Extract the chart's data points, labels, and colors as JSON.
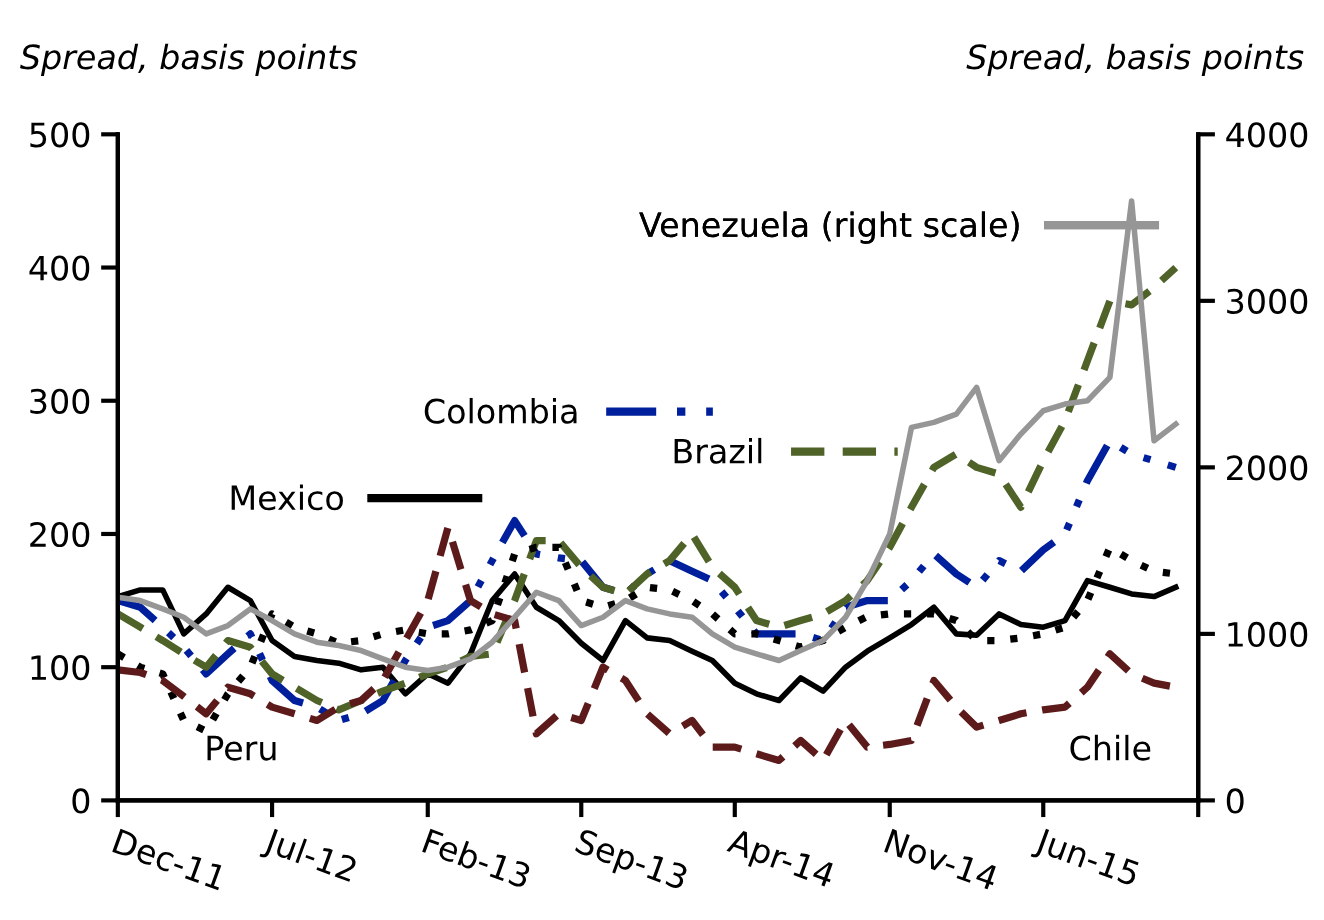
{
  "chart_data": {
    "type": "line",
    "ylabel": "Spread, basis points",
    "y2label": "Spread, basis points",
    "x": [
      "2011-12",
      "2012-01",
      "2012-02",
      "2012-03",
      "2012-04",
      "2012-05",
      "2012-06",
      "2012-07",
      "2012-08",
      "2012-09",
      "2012-10",
      "2012-11",
      "2012-12",
      "2013-01",
      "2013-02",
      "2013-03",
      "2013-04",
      "2013-05",
      "2013-06",
      "2013-07",
      "2013-08",
      "2013-09",
      "2013-10",
      "2013-11",
      "2013-12",
      "2014-01",
      "2014-02",
      "2014-03",
      "2014-04",
      "2014-05",
      "2014-06",
      "2014-07",
      "2014-08",
      "2014-09",
      "2014-10",
      "2014-11",
      "2014-12",
      "2015-01",
      "2015-02",
      "2015-03",
      "2015-04",
      "2015-05",
      "2015-06",
      "2015-07",
      "2015-08",
      "2015-09",
      "2015-10",
      "2015-11",
      "2015-12"
    ],
    "series": [
      {
        "name": "Mexico",
        "color": "#000000",
        "line_style": "solid",
        "values": [
          153,
          158,
          158,
          125,
          140,
          160,
          150,
          120,
          108,
          105,
          103,
          98,
          100,
          80,
          95,
          88,
          110,
          150,
          170,
          145,
          135,
          118,
          105,
          135,
          122,
          120,
          112,
          105,
          88,
          80,
          75,
          92,
          82,
          100,
          112,
          122,
          132,
          145,
          125,
          124,
          140,
          132,
          130,
          135,
          165,
          160,
          155,
          153,
          160
        ]
      },
      {
        "name": "Colombia",
        "color": "#001f9c",
        "line_style": "dashdot",
        "values": [
          150,
          145,
          130,
          115,
          95,
          110,
          125,
          90,
          75,
          70,
          60,
          65,
          75,
          105,
          130,
          135,
          150,
          180,
          210,
          185,
          182,
          180,
          160,
          155,
          170,
          180,
          172,
          165,
          145,
          125,
          125,
          125,
          120,
          145,
          150,
          150,
          165,
          185,
          170,
          160,
          180,
          172,
          188,
          200,
          240,
          270,
          260,
          255,
          250
        ]
      },
      {
        "name": "Brazil",
        "color": "#4f6228",
        "line_style": "dashed",
        "values": [
          140,
          130,
          120,
          110,
          100,
          120,
          115,
          95,
          85,
          75,
          68,
          75,
          82,
          88,
          95,
          100,
          108,
          110,
          150,
          195,
          195,
          175,
          160,
          155,
          170,
          180,
          200,
          175,
          160,
          135,
          130,
          135,
          140,
          150,
          165,
          190,
          220,
          250,
          260,
          250,
          245,
          220,
          255,
          285,
          330,
          375,
          372,
          385,
          400
        ]
      },
      {
        "name": "Venezuela (right scale)",
        "color": "#969696",
        "line_style": "solid",
        "axis": "y2",
        "values": [
          1220,
          1200,
          1150,
          1100,
          1000,
          1050,
          1150,
          1080,
          1000,
          950,
          930,
          900,
          850,
          800,
          780,
          800,
          850,
          950,
          1100,
          1250,
          1200,
          1050,
          1100,
          1200,
          1150,
          1120,
          1100,
          1000,
          920,
          880,
          840,
          900,
          960,
          1100,
          1320,
          1600,
          2240,
          2270,
          2320,
          2480,
          2040,
          2200,
          2340,
          2380,
          2400,
          2540,
          3600,
          2160,
          2260
        ]
      },
      {
        "name": "Peru",
        "color": "#000000",
        "line_style": "dotted",
        "values": [
          110,
          100,
          95,
          60,
          52,
          80,
          100,
          140,
          130,
          125,
          118,
          120,
          125,
          128,
          125,
          125,
          128,
          135,
          185,
          190,
          190,
          150,
          145,
          150,
          160,
          158,
          150,
          140,
          125,
          125,
          120,
          115,
          120,
          130,
          138,
          140,
          140,
          140,
          135,
          120,
          120,
          122,
          125,
          130,
          150,
          190,
          180,
          172,
          170
        ]
      },
      {
        "name": "Chile",
        "color": "#5c1a1a",
        "line_style": "dashed",
        "values": [
          98,
          96,
          90,
          78,
          65,
          85,
          80,
          70,
          65,
          60,
          70,
          75,
          90,
          120,
          150,
          205,
          150,
          140,
          135,
          50,
          65,
          60,
          100,
          90,
          65,
          50,
          60,
          40,
          40,
          35,
          30,
          45,
          30,
          60,
          40,
          42,
          45,
          90,
          70,
          55,
          60,
          65,
          68,
          70,
          85,
          110,
          95,
          88,
          85
        ]
      }
    ],
    "xlim": [
      "2011-12",
      "2016-01"
    ],
    "xticks": [
      {
        "value": "2011-12",
        "label": "Dec-11"
      },
      {
        "value": "2012-07",
        "label": "Jul-12"
      },
      {
        "value": "2013-02",
        "label": "Feb-13"
      },
      {
        "value": "2013-09",
        "label": "Sep-13"
      },
      {
        "value": "2014-04",
        "label": "Apr-14"
      },
      {
        "value": "2014-11",
        "label": "Nov-14"
      },
      {
        "value": "2015-06",
        "label": "Jun-15"
      },
      {
        "value": "2016-01",
        "label": null
      }
    ],
    "ylim": [
      0,
      500
    ],
    "yticks": [
      0,
      100,
      200,
      300,
      400,
      500
    ],
    "y2lim": [
      0,
      4000
    ],
    "y2ticks": [
      0,
      1000,
      2000,
      3000,
      4000
    ],
    "grid": false,
    "legend": "top"
  }
}
